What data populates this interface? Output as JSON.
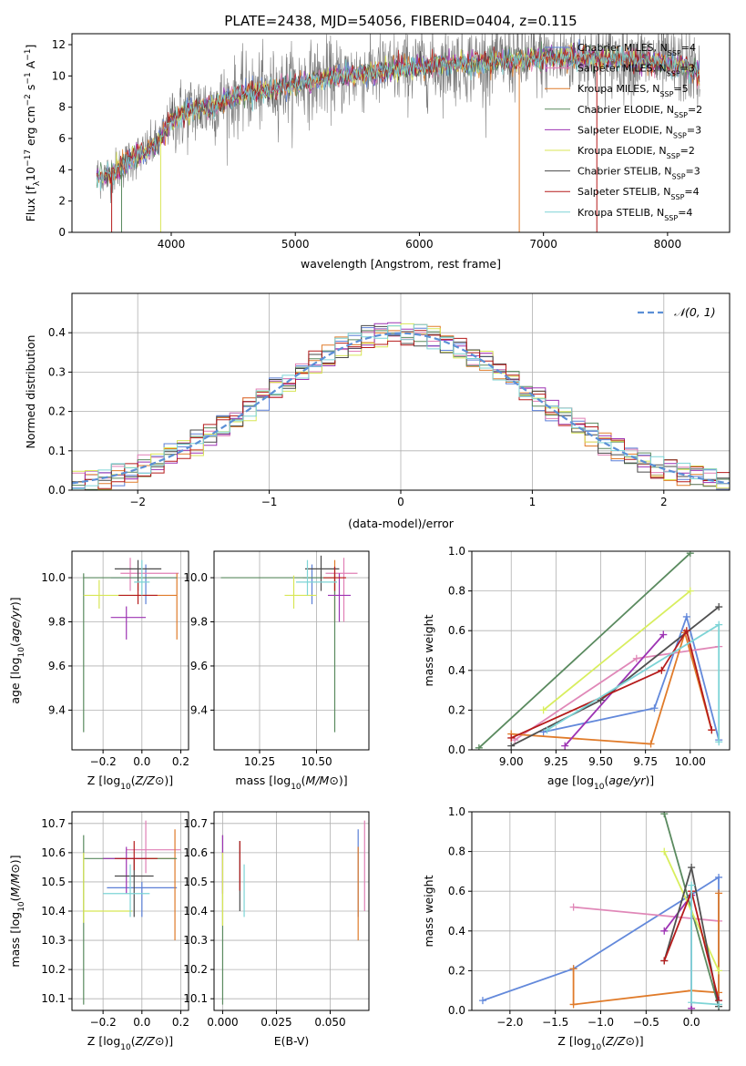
{
  "series_styles": {
    "names": [
      "Chabrier MILES",
      "Salpeter MILES",
      "Kroupa MILES",
      "Chabrier ELODIE",
      "Salpeter ELODIE",
      "Kroupa ELODIE",
      "Chabrier STELIB",
      "Salpeter STELIB",
      "Kroupa STELIB"
    ],
    "colors": [
      "#5b7fd6",
      "#e07fb5",
      "#e07b2a",
      "#5a8a5f",
      "#9d33b3",
      "#d8e655",
      "#4a4a4a",
      "#b51b1b",
      "#7dd4d6"
    ],
    "scatter_colors": [
      "#6389db",
      "#e088b8",
      "#e07b2a",
      "#5a8a5f",
      "#9d33b3",
      "#d8ee5e",
      "#505050",
      "#b51b1b",
      "#7dd4d6"
    ]
  },
  "chart_data": [
    {
      "id": "spectrum",
      "type": "line",
      "title": "PLATE=2438, MJD=54056, FIBERID=0404, z=0.115",
      "xlabel": "wavelength [Angstrom, rest frame]",
      "ylabel_parts": [
        "Flux [f",
        "λ",
        "10",
        "−17",
        " erg cm",
        "−2",
        " s",
        "−1",
        " A",
        "−1",
        "]"
      ],
      "xlim": [
        3200,
        8500
      ],
      "ylim": [
        0,
        12.7
      ],
      "xticks": [
        4000,
        5000,
        6000,
        7000,
        8000
      ],
      "yticks": [
        0,
        2,
        4,
        6,
        8,
        10,
        12
      ],
      "legend": [
        {
          "label": "Chabrier MILES, N",
          "sub": "SSP",
          "tail": "=4"
        },
        {
          "label": "Salpeter MILES, N",
          "sub": "SSP",
          "tail": "=3"
        },
        {
          "label": "Kroupa MILES, N",
          "sub": "SSP",
          "tail": "=5"
        },
        {
          "label": "Chabrier ELODIE, N",
          "sub": "SSP",
          "tail": "=2"
        },
        {
          "label": "Salpeter ELODIE, N",
          "sub": "SSP",
          "tail": "=3"
        },
        {
          "label": "Kroupa ELODIE, N",
          "sub": "SSP",
          "tail": "=2"
        },
        {
          "label": "Chabrier STELIB, N",
          "sub": "SSP",
          "tail": "=3"
        },
        {
          "label": "Salpeter STELIB, N",
          "sub": "SSP",
          "tail": "=4"
        },
        {
          "label": "Kroupa STELIB, N",
          "sub": "SSP",
          "tail": "=4"
        }
      ],
      "continuum": [
        [
          3400,
          3.6
        ],
        [
          3500,
          3.7
        ],
        [
          3600,
          4.2
        ],
        [
          3700,
          4.8
        ],
        [
          3800,
          5.2
        ],
        [
          3900,
          5.8
        ],
        [
          4000,
          7.2
        ],
        [
          4100,
          7.6
        ],
        [
          4200,
          7.9
        ],
        [
          4300,
          8.0
        ],
        [
          4400,
          8.3
        ],
        [
          4500,
          8.6
        ],
        [
          4600,
          8.9
        ],
        [
          4700,
          9.0
        ],
        [
          4800,
          9.1
        ],
        [
          4900,
          9.3
        ],
        [
          5000,
          9.5
        ],
        [
          5200,
          9.8
        ],
        [
          5400,
          10.0
        ],
        [
          5600,
          10.2
        ],
        [
          5800,
          10.4
        ],
        [
          6000,
          10.6
        ],
        [
          6200,
          10.7
        ],
        [
          6400,
          10.8
        ],
        [
          6600,
          10.9
        ],
        [
          6800,
          11.0
        ],
        [
          7000,
          11.1
        ],
        [
          7200,
          11.2
        ],
        [
          7400,
          11.2
        ],
        [
          7600,
          11.1
        ],
        [
          7800,
          11.0
        ],
        [
          8000,
          10.8
        ],
        [
          8200,
          10.4
        ],
        [
          8260,
          10.2
        ]
      ],
      "noise_amplitude": 1.2
    },
    {
      "id": "residuals",
      "type": "histogram",
      "xlabel": "(data-model)/error",
      "ylabel": "Normed distribution",
      "xlim": [
        -2.5,
        2.5
      ],
      "ylim": [
        0,
        0.5
      ],
      "xticks": [
        -2,
        -1,
        0,
        1,
        2
      ],
      "yticks": [
        0.0,
        0.1,
        0.2,
        0.3,
        0.4
      ],
      "bin_width": 0.1,
      "legend_label": "𝒩(0, 1)",
      "reference": {
        "mean": 0,
        "sigma": 1,
        "color": "#5b8fd6"
      }
    },
    {
      "id": "age_vs_Z",
      "type": "errorbar",
      "xlabel": "Z [log10(Z/Z⊙)]",
      "ylabel": "age  [log10(age/yr)]",
      "xlim": [
        -0.36,
        0.24
      ],
      "ylim": [
        9.22,
        10.12
      ],
      "xticks": [
        -0.2,
        0.0,
        0.2
      ],
      "yticks": [
        9.4,
        9.6,
        9.8,
        10.0
      ],
      "points": [
        {
          "x": 0.02,
          "y": 10.0,
          "xerr": [
            0.18,
            0.16
          ],
          "yerr": [
            0.12,
            0.06
          ]
        },
        {
          "x": -0.06,
          "y": 10.02,
          "xerr": [
            0.05,
            0.25
          ],
          "yerr": [
            0.08,
            0.07
          ]
        },
        {
          "x": 0.18,
          "y": 9.92,
          "xerr": [
            0.16,
            0.0
          ],
          "yerr": [
            0.2,
            0.1
          ]
        },
        {
          "x": -0.3,
          "y": 10.0,
          "xerr": [
            0.0,
            0.48
          ],
          "yerr": [
            0.7,
            0.02
          ]
        },
        {
          "x": -0.08,
          "y": 9.82,
          "xerr": [
            0.08,
            0.1
          ],
          "yerr": [
            0.1,
            0.05
          ]
        },
        {
          "x": -0.22,
          "y": 9.92,
          "xerr": [
            0.08,
            0.25
          ],
          "yerr": [
            0.06,
            0.07
          ]
        },
        {
          "x": -0.02,
          "y": 10.04,
          "xerr": [
            0.12,
            0.12
          ],
          "yerr": [
            0.1,
            0.04
          ]
        },
        {
          "x": -0.02,
          "y": 9.92,
          "xerr": [
            0.1,
            0.1
          ],
          "yerr": [
            0.04,
            0.06
          ]
        },
        {
          "x": 0.0,
          "y": 9.98,
          "xerr": [
            0.04,
            0.04
          ],
          "yerr": [
            0.06,
            0.1
          ]
        }
      ]
    },
    {
      "id": "age_vs_mass",
      "type": "errorbar",
      "xlabel": "mass [log10(M/M⊙)]",
      "ylabel": "",
      "xlim": [
        10.05,
        10.73
      ],
      "ylim": [
        9.22,
        10.12
      ],
      "xticks": [
        10.25,
        10.5
      ],
      "yticks": [
        9.4,
        9.6,
        9.8,
        10.0
      ],
      "points": [
        {
          "x": 10.48,
          "y": 10.0,
          "xerr": [
            0.04,
            0.04
          ],
          "yerr": [
            0.12,
            0.06
          ]
        },
        {
          "x": 10.62,
          "y": 10.02,
          "xerr": [
            0.08,
            0.06
          ],
          "yerr": [
            0.22,
            0.07
          ]
        },
        {
          "x": 10.58,
          "y": 10.0,
          "xerr": [
            0.05,
            0.05
          ],
          "yerr": [
            0.2,
            0.08
          ]
        },
        {
          "x": 10.58,
          "y": 10.0,
          "xerr": [
            0.5,
            0.0
          ],
          "yerr": [
            0.7,
            0.02
          ]
        },
        {
          "x": 10.6,
          "y": 9.92,
          "xerr": [
            0.05,
            0.05
          ],
          "yerr": [
            0.12,
            0.1
          ]
        },
        {
          "x": 10.4,
          "y": 9.92,
          "xerr": [
            0.04,
            0.1
          ],
          "yerr": [
            0.06,
            0.09
          ]
        },
        {
          "x": 10.52,
          "y": 10.04,
          "xerr": [
            0.07,
            0.08
          ],
          "yerr": [
            0.1,
            0.06
          ]
        },
        {
          "x": 10.58,
          "y": 10.0,
          "xerr": [
            0.05,
            0.05
          ],
          "yerr": [
            0.06,
            0.05
          ]
        },
        {
          "x": 10.46,
          "y": 9.98,
          "xerr": [
            0.05,
            0.13
          ],
          "yerr": [
            0.06,
            0.1
          ]
        }
      ]
    },
    {
      "id": "weight_vs_age",
      "type": "line",
      "xlabel": "age  [log10(age/yr)]",
      "ylabel": "mass weight",
      "xlim": [
        8.78,
        10.22
      ],
      "ylim": [
        0,
        1
      ],
      "xticks": [
        9.0,
        9.25,
        9.5,
        9.75,
        10.0
      ],
      "yticks": [
        0.0,
        0.2,
        0.4,
        0.6,
        0.8,
        1.0
      ],
      "series": [
        {
          "points": [
            [
              9.18,
              0.09
            ],
            [
              9.8,
              0.21
            ],
            [
              9.98,
              0.67
            ],
            [
              10.16,
              0.05
            ]
          ]
        },
        {
          "points": [
            [
              9.02,
              0.05
            ],
            [
              9.7,
              0.46
            ],
            [
              10.16,
              0.52
            ]
          ]
        },
        {
          "points": [
            [
              9.0,
              0.08
            ],
            [
              9.78,
              0.03
            ],
            [
              9.97,
              0.59
            ],
            [
              10.12,
              0.1
            ]
          ]
        },
        {
          "points": [
            [
              8.82,
              0.01
            ],
            [
              10.0,
              0.99
            ]
          ]
        },
        {
          "points": [
            [
              9.3,
              0.02
            ],
            [
              9.85,
              0.58
            ]
          ]
        },
        {
          "points": [
            [
              9.18,
              0.2
            ],
            [
              10.0,
              0.8
            ]
          ]
        },
        {
          "points": [
            [
              9.0,
              0.02
            ],
            [
              9.5,
              0.25
            ],
            [
              10.16,
              0.72
            ]
          ]
        },
        {
          "points": [
            [
              9.0,
              0.06
            ],
            [
              9.84,
              0.4
            ],
            [
              9.98,
              0.6
            ],
            [
              10.12,
              0.1
            ]
          ]
        },
        {
          "points": [
            [
              9.2,
              0.1
            ],
            [
              10.16,
              0.63
            ],
            [
              10.16,
              0.04
            ]
          ]
        }
      ]
    },
    {
      "id": "mass_vs_Z",
      "type": "errorbar",
      "xlabel": "Z [log10(Z/Z⊙)]",
      "ylabel": "mass [log10(M/M⊙)]",
      "xlim": [
        -0.36,
        0.24
      ],
      "ylim": [
        10.06,
        10.74
      ],
      "xticks": [
        -0.2,
        0.0,
        0.2
      ],
      "yticks": [
        10.1,
        10.2,
        10.3,
        10.4,
        10.5,
        10.6,
        10.7
      ],
      "points": [
        {
          "x": 0.0,
          "y": 10.48,
          "xerr": [
            0.18,
            0.18
          ],
          "yerr": [
            0.1,
            0.02
          ]
        },
        {
          "x": 0.02,
          "y": 10.61,
          "xerr": [
            0.1,
            0.18
          ],
          "yerr": [
            0.08,
            0.1
          ]
        },
        {
          "x": 0.17,
          "y": 10.58,
          "xerr": [
            0.16,
            0.0
          ],
          "yerr": [
            0.28,
            0.1
          ]
        },
        {
          "x": -0.3,
          "y": 10.58,
          "xerr": [
            0.0,
            0.48
          ],
          "yerr": [
            0.5,
            0.08
          ]
        },
        {
          "x": -0.08,
          "y": 10.58,
          "xerr": [
            0.12,
            0.1
          ],
          "yerr": [
            0.12,
            0.04
          ]
        },
        {
          "x": -0.3,
          "y": 10.4,
          "xerr": [
            0.0,
            0.25
          ],
          "yerr": [
            0.04,
            0.2
          ]
        },
        {
          "x": -0.04,
          "y": 10.52,
          "xerr": [
            0.1,
            0.1
          ],
          "yerr": [
            0.14,
            0.06
          ]
        },
        {
          "x": -0.04,
          "y": 10.58,
          "xerr": [
            0.1,
            0.12
          ],
          "yerr": [
            0.04,
            0.06
          ]
        },
        {
          "x": -0.06,
          "y": 10.46,
          "xerr": [
            0.14,
            0.1
          ],
          "yerr": [
            0.08,
            0.1
          ]
        }
      ]
    },
    {
      "id": "mass_vs_EBV",
      "type": "errorbar",
      "xlabel": "E(B-V)",
      "ylabel": "",
      "xlim": [
        -0.004,
        0.068
      ],
      "ylim": [
        10.06,
        10.74
      ],
      "xticks": [
        0.0,
        0.025,
        0.05
      ],
      "xtick_labels": [
        "0.000",
        "0.025",
        "0.050"
      ],
      "yticks": [
        10.1,
        10.2,
        10.3,
        10.4,
        10.5,
        10.6,
        10.7
      ],
      "points": [
        {
          "x": 0.063,
          "y": 10.48,
          "xerr": [
            0,
            0
          ],
          "yerr": [
            0.1,
            0.2
          ]
        },
        {
          "x": 0.066,
          "y": 10.58,
          "xerr": [
            0,
            0
          ],
          "yerr": [
            0.18,
            0.13
          ]
        },
        {
          "x": 0.063,
          "y": 10.5,
          "xerr": [
            0,
            0
          ],
          "yerr": [
            0.2,
            0.12
          ]
        },
        {
          "x": 0.0,
          "y": 10.58,
          "xerr": [
            0,
            0
          ],
          "yerr": [
            0.5,
            0.08
          ]
        },
        {
          "x": 0.0,
          "y": 10.58,
          "xerr": [
            0,
            0
          ],
          "yerr": [
            0.12,
            0.08
          ]
        },
        {
          "x": 0.0,
          "y": 10.45,
          "xerr": [
            0,
            0
          ],
          "yerr": [
            0.1,
            0.15
          ]
        },
        {
          "x": 0.008,
          "y": 10.56,
          "xerr": [
            0,
            0
          ],
          "yerr": [
            0.16,
            0.08
          ]
        },
        {
          "x": 0.008,
          "y": 10.55,
          "xerr": [
            0,
            0
          ],
          "yerr": [
            0.08,
            0.09
          ]
        },
        {
          "x": 0.01,
          "y": 10.46,
          "xerr": [
            0,
            0
          ],
          "yerr": [
            0.08,
            0.1
          ]
        }
      ]
    },
    {
      "id": "weight_vs_Z",
      "type": "line",
      "xlabel": "Z [log10(Z/Z⊙)]",
      "ylabel": "mass weight",
      "xlim": [
        -2.42,
        0.42
      ],
      "ylim": [
        0,
        1
      ],
      "xticks": [
        -2.0,
        -1.5,
        -1.0,
        -0.5,
        0.0
      ],
      "yticks": [
        0.0,
        0.2,
        0.4,
        0.6,
        0.8,
        1.0
      ],
      "series": [
        {
          "points": [
            [
              -2.3,
              0.05
            ],
            [
              -1.3,
              0.21
            ],
            [
              0.3,
              0.67
            ],
            [
              0.3,
              0.05
            ]
          ]
        },
        {
          "points": [
            [
              -1.3,
              0.52
            ],
            [
              0.3,
              0.45
            ]
          ]
        },
        {
          "points": [
            [
              -1.3,
              0.21
            ],
            [
              -1.3,
              0.03
            ],
            [
              0.0,
              0.1
            ],
            [
              0.3,
              0.09
            ],
            [
              0.3,
              0.59
            ]
          ]
        },
        {
          "points": [
            [
              -0.3,
              0.99
            ],
            [
              0.3,
              0.02
            ]
          ]
        },
        {
          "points": [
            [
              -0.3,
              0.4
            ],
            [
              0.0,
              0.58
            ],
            [
              0.0,
              0.01
            ]
          ]
        },
        {
          "points": [
            [
              -0.3,
              0.8
            ],
            [
              0.3,
              0.2
            ]
          ]
        },
        {
          "points": [
            [
              -0.3,
              0.25
            ],
            [
              0.0,
              0.72
            ],
            [
              0.3,
              0.02
            ]
          ]
        },
        {
          "points": [
            [
              -0.3,
              0.25
            ],
            [
              0.0,
              0.6
            ],
            [
              0.3,
              0.05
            ]
          ]
        },
        {
          "points": [
            [
              0.0,
              0.63
            ],
            [
              0.0,
              0.04
            ],
            [
              0.3,
              0.03
            ]
          ]
        }
      ]
    }
  ]
}
